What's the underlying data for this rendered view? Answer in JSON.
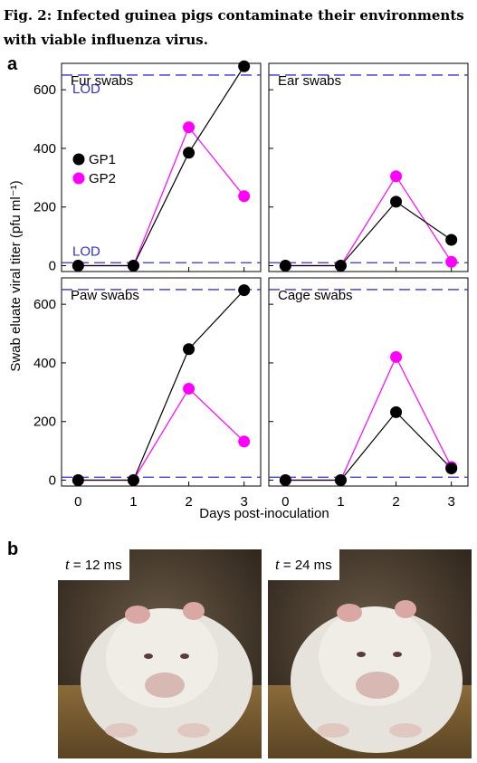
{
  "figure": {
    "caption": "Fig. 2: Infected guinea pigs contaminate their environments with viable influenza virus.",
    "panel_a_letter": "a",
    "panel_b_letter": "b"
  },
  "chart_data": {
    "type": "line",
    "ylabel": "Swab eluate viral titer (pfu ml⁻¹)",
    "xlabel": "Days post-inoculation",
    "x_ticks": [
      "0",
      "1",
      "2",
      "3"
    ],
    "y_ticks": [
      "0",
      "200",
      "400",
      "600"
    ],
    "xlim": [
      -0.3,
      3.3
    ],
    "ylim": [
      -20,
      690
    ],
    "lod_label": "LOD",
    "lod_lines": [
      10,
      650
    ],
    "legend": {
      "position": "top-left",
      "entries": [
        "GP1",
        "GP2"
      ]
    },
    "colors": {
      "GP1": "#000000",
      "GP2": "#ff00ff",
      "lod": "#3333cc"
    },
    "panels": [
      {
        "title": "Fur swabs",
        "x": [
          0,
          1,
          2,
          3
        ],
        "series": [
          {
            "name": "GP1",
            "values": [
              0,
              0,
              385,
              680
            ]
          },
          {
            "name": "GP2",
            "values": [
              0,
              0,
              472,
              237
            ]
          }
        ]
      },
      {
        "title": "Ear swabs",
        "x": [
          0,
          1,
          2,
          3
        ],
        "series": [
          {
            "name": "GP1",
            "values": [
              0,
              0,
              218,
              88
            ]
          },
          {
            "name": "GP2",
            "values": [
              0,
              0,
              305,
              13
            ]
          }
        ]
      },
      {
        "title": "Paw swabs",
        "x": [
          0,
          1,
          2,
          3
        ],
        "series": [
          {
            "name": "GP1",
            "values": [
              0,
              0,
              447,
              648
            ]
          },
          {
            "name": "GP2",
            "values": [
              0,
              0,
              312,
              132
            ]
          }
        ]
      },
      {
        "title": "Cage swabs",
        "x": [
          0,
          1,
          2,
          3
        ],
        "series": [
          {
            "name": "GP1",
            "values": [
              0,
              0,
              232,
              40
            ]
          },
          {
            "name": "GP2",
            "values": [
              0,
              0,
              420,
              45
            ]
          }
        ]
      }
    ]
  },
  "photos": {
    "left_label_var": "t",
    "left_label_value": " = 12 ms",
    "right_label_var": "t",
    "right_label_value": " = 24 ms"
  }
}
